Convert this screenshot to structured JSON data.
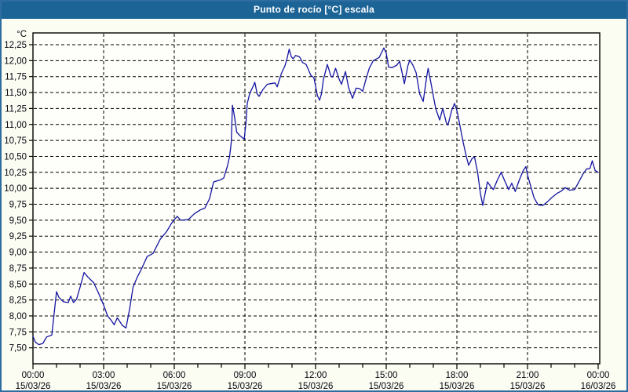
{
  "window": {
    "title": "Punto de rocío [°C] escala"
  },
  "chart_data": {
    "type": "line",
    "title": "Punto de rocío [°C] escala",
    "grid": "dashed",
    "legend": "none",
    "colors": {
      "line": "#1515a3",
      "titlebar_bg": "#1d6496",
      "titlebar_text": "#ffffff",
      "plot_background": "#fefefa",
      "grid_and_border": "#000000",
      "axis_text": "#05050f",
      "window_frame": "#2e6da0"
    },
    "y_axis": {
      "unit": "°C",
      "min_gridline": 7.5,
      "max_gridline": 12.25,
      "step": 0.25,
      "values": [
        12.25,
        12.0,
        11.75,
        11.5,
        11.25,
        11.0,
        10.75,
        10.5,
        10.25,
        10.0,
        9.75,
        9.5,
        9.25,
        9.0,
        8.75,
        8.5,
        8.25,
        8.0,
        7.75,
        7.5
      ],
      "labels": [
        "12,25",
        "12,00",
        "11,75",
        "11,50",
        "11,25",
        "11,00",
        "10,75",
        "10,50",
        "10,25",
        "10,00",
        "9,75",
        "9,50",
        "9,25",
        "9,00",
        "8,75",
        "8,50",
        "8,25",
        "8,00",
        "7,75",
        "7,50"
      ]
    },
    "x_axis": {
      "hours_range": [
        0,
        24
      ],
      "minor_tick_every_hours": 1,
      "gridline_every_hours": 3,
      "ticks": [
        {
          "hour": 0,
          "time": "00:00",
          "date": "15/03/26"
        },
        {
          "hour": 3,
          "time": "03:00",
          "date": "15/03/26"
        },
        {
          "hour": 6,
          "time": "06:00",
          "date": "15/03/26"
        },
        {
          "hour": 9,
          "time": "09:00",
          "date": "15/03/26"
        },
        {
          "hour": 12,
          "time": "12:00",
          "date": "15/03/26"
        },
        {
          "hour": 15,
          "time": "15:00",
          "date": "15/03/26"
        },
        {
          "hour": 18,
          "time": "18:00",
          "date": "15/03/26"
        },
        {
          "hour": 21,
          "time": "21:00",
          "date": "15/03/26"
        },
        {
          "hour": 24,
          "time": "00:00",
          "date": "16/03/26"
        }
      ]
    },
    "series": [
      {
        "name": "Punto de rocío",
        "color": "#1515a3",
        "points": [
          [
            0.0,
            7.68
          ],
          [
            0.1,
            7.59
          ],
          [
            0.25,
            7.55
          ],
          [
            0.42,
            7.57
          ],
          [
            0.58,
            7.67
          ],
          [
            0.8,
            7.7
          ],
          [
            1.0,
            8.38
          ],
          [
            1.1,
            8.29
          ],
          [
            1.3,
            8.22
          ],
          [
            1.5,
            8.21
          ],
          [
            1.6,
            8.31
          ],
          [
            1.72,
            8.21
          ],
          [
            1.85,
            8.26
          ],
          [
            2.0,
            8.45
          ],
          [
            2.17,
            8.68
          ],
          [
            2.33,
            8.61
          ],
          [
            2.58,
            8.52
          ],
          [
            2.78,
            8.36
          ],
          [
            3.0,
            8.17
          ],
          [
            3.17,
            8.0
          ],
          [
            3.3,
            7.94
          ],
          [
            3.45,
            7.86
          ],
          [
            3.58,
            7.97
          ],
          [
            3.8,
            7.85
          ],
          [
            3.95,
            7.81
          ],
          [
            4.1,
            8.1
          ],
          [
            4.25,
            8.45
          ],
          [
            4.42,
            8.6
          ],
          [
            4.6,
            8.73
          ],
          [
            4.85,
            8.93
          ],
          [
            5.1,
            8.98
          ],
          [
            5.4,
            9.2
          ],
          [
            5.67,
            9.32
          ],
          [
            5.9,
            9.46
          ],
          [
            6.0,
            9.51
          ],
          [
            6.13,
            9.56
          ],
          [
            6.27,
            9.5
          ],
          [
            6.6,
            9.51
          ],
          [
            6.85,
            9.6
          ],
          [
            7.1,
            9.66
          ],
          [
            7.3,
            9.69
          ],
          [
            7.5,
            9.84
          ],
          [
            7.67,
            10.1
          ],
          [
            7.95,
            10.13
          ],
          [
            8.1,
            10.16
          ],
          [
            8.25,
            10.34
          ],
          [
            8.35,
            10.5
          ],
          [
            8.42,
            10.72
          ],
          [
            8.47,
            11.3
          ],
          [
            8.55,
            11.14
          ],
          [
            8.65,
            10.88
          ],
          [
            8.8,
            10.82
          ],
          [
            8.97,
            10.77
          ],
          [
            9.05,
            11.05
          ],
          [
            9.1,
            11.33
          ],
          [
            9.2,
            11.48
          ],
          [
            9.35,
            11.6
          ],
          [
            9.42,
            11.66
          ],
          [
            9.52,
            11.48
          ],
          [
            9.6,
            11.44
          ],
          [
            9.77,
            11.55
          ],
          [
            9.95,
            11.63
          ],
          [
            10.1,
            11.64
          ],
          [
            10.28,
            11.65
          ],
          [
            10.37,
            11.59
          ],
          [
            10.55,
            11.8
          ],
          [
            10.7,
            11.92
          ],
          [
            10.78,
            12.02
          ],
          [
            10.88,
            12.18
          ],
          [
            10.97,
            12.06
          ],
          [
            11.05,
            12.03
          ],
          [
            11.15,
            12.08
          ],
          [
            11.32,
            12.06
          ],
          [
            11.45,
            11.97
          ],
          [
            11.6,
            11.94
          ],
          [
            11.8,
            11.77
          ],
          [
            11.93,
            11.73
          ],
          [
            12.08,
            11.45
          ],
          [
            12.17,
            11.38
          ],
          [
            12.25,
            11.48
          ],
          [
            12.33,
            11.7
          ],
          [
            12.5,
            11.94
          ],
          [
            12.65,
            11.76
          ],
          [
            12.72,
            11.74
          ],
          [
            12.85,
            11.88
          ],
          [
            13.0,
            11.71
          ],
          [
            13.1,
            11.63
          ],
          [
            13.27,
            11.83
          ],
          [
            13.4,
            11.58
          ],
          [
            13.57,
            11.41
          ],
          [
            13.72,
            11.57
          ],
          [
            13.88,
            11.56
          ],
          [
            14.0,
            11.52
          ],
          [
            14.15,
            11.72
          ],
          [
            14.28,
            11.88
          ],
          [
            14.45,
            12.0
          ],
          [
            14.7,
            12.05
          ],
          [
            14.9,
            12.2
          ],
          [
            15.0,
            12.12
          ],
          [
            15.1,
            11.9
          ],
          [
            15.25,
            11.89
          ],
          [
            15.45,
            11.93
          ],
          [
            15.57,
            11.99
          ],
          [
            15.68,
            11.8
          ],
          [
            15.77,
            11.64
          ],
          [
            15.92,
            11.92
          ],
          [
            16.0,
            12.01
          ],
          [
            16.13,
            11.93
          ],
          [
            16.27,
            11.81
          ],
          [
            16.42,
            11.48
          ],
          [
            16.57,
            11.36
          ],
          [
            16.72,
            11.75
          ],
          [
            16.78,
            11.88
          ],
          [
            16.95,
            11.55
          ],
          [
            17.1,
            11.25
          ],
          [
            17.27,
            11.07
          ],
          [
            17.4,
            11.25
          ],
          [
            17.55,
            11.03
          ],
          [
            17.62,
            10.99
          ],
          [
            17.78,
            11.22
          ],
          [
            17.9,
            11.33
          ],
          [
            18.0,
            11.22
          ],
          [
            18.1,
            11.04
          ],
          [
            18.25,
            10.75
          ],
          [
            18.4,
            10.5
          ],
          [
            18.5,
            10.36
          ],
          [
            18.65,
            10.47
          ],
          [
            18.75,
            10.49
          ],
          [
            18.88,
            10.25
          ],
          [
            19.0,
            9.92
          ],
          [
            19.1,
            9.73
          ],
          [
            19.2,
            9.92
          ],
          [
            19.3,
            10.1
          ],
          [
            19.45,
            10.02
          ],
          [
            19.55,
            9.98
          ],
          [
            19.72,
            10.13
          ],
          [
            19.88,
            10.25
          ],
          [
            20.05,
            10.1
          ],
          [
            20.2,
            9.98
          ],
          [
            20.33,
            10.08
          ],
          [
            20.48,
            9.95
          ],
          [
            20.65,
            10.13
          ],
          [
            20.82,
            10.28
          ],
          [
            20.93,
            10.34
          ],
          [
            21.0,
            10.21
          ],
          [
            21.13,
            10.04
          ],
          [
            21.28,
            9.85
          ],
          [
            21.45,
            9.74
          ],
          [
            21.65,
            9.73
          ],
          [
            21.85,
            9.79
          ],
          [
            22.05,
            9.86
          ],
          [
            22.25,
            9.92
          ],
          [
            22.45,
            9.96
          ],
          [
            22.6,
            10.01
          ],
          [
            22.78,
            9.97
          ],
          [
            23.0,
            9.98
          ],
          [
            23.18,
            10.1
          ],
          [
            23.35,
            10.22
          ],
          [
            23.5,
            10.3
          ],
          [
            23.65,
            10.31
          ],
          [
            23.75,
            10.43
          ],
          [
            23.87,
            10.28
          ],
          [
            24.0,
            10.25
          ]
        ]
      }
    ]
  }
}
